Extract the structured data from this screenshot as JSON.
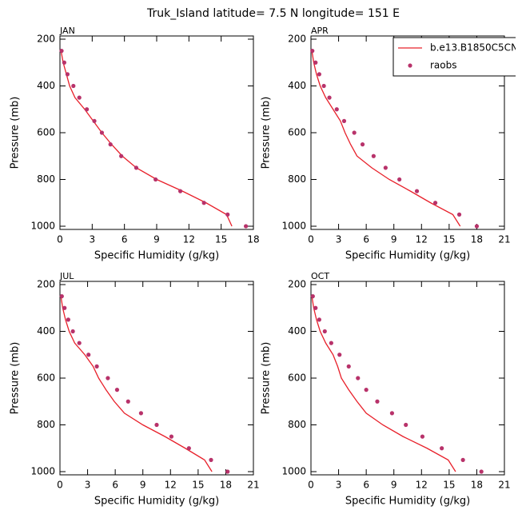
{
  "title": "Truk_Island  latitude= 7.5 N longitude= 151 E",
  "chart_data": [
    {
      "type": "line",
      "label": "JAN",
      "xlabel": "Specific Humidity (g/kg)",
      "ylabel": "Pressure (mb)",
      "xlim": [
        0,
        18
      ],
      "xticks": [
        0,
        3,
        6,
        9,
        12,
        15,
        18
      ],
      "ylim": [
        200,
        1000
      ],
      "yticks": [
        200,
        400,
        600,
        800,
        1000
      ],
      "y_inverted": true,
      "series": [
        {
          "type": "line",
          "color": "#e8202a",
          "pressure": [
            250,
            300,
            350,
            400,
            450,
            500,
            550,
            600,
            650,
            700,
            750,
            800,
            850,
            900,
            950,
            1000
          ],
          "values": [
            0.1,
            0.3,
            0.6,
            0.9,
            1.4,
            2.3,
            3.1,
            3.9,
            4.8,
            5.8,
            7.1,
            9.0,
            11.4,
            13.6,
            15.5,
            16.0
          ]
        },
        {
          "type": "scatter",
          "color": "#b8326a",
          "pressure": [
            250,
            300,
            350,
            400,
            450,
            500,
            550,
            600,
            650,
            700,
            750,
            800,
            850,
            900,
            950,
            1000
          ],
          "values": [
            0.15,
            0.4,
            0.7,
            1.25,
            1.8,
            2.5,
            3.2,
            3.9,
            4.7,
            5.7,
            7.1,
            8.9,
            11.2,
            13.4,
            15.6,
            17.3
          ]
        }
      ]
    },
    {
      "type": "line",
      "label": "APR",
      "xlabel": "Specific Humidity (g/kg)",
      "ylabel": "Pressure (mb)",
      "xlim": [
        0,
        21
      ],
      "xticks": [
        0,
        3,
        6,
        9,
        12,
        15,
        18,
        21
      ],
      "ylim": [
        200,
        1000
      ],
      "yticks": [
        200,
        400,
        600,
        800,
        1000
      ],
      "y_inverted": true,
      "legend": "upper right",
      "series": [
        {
          "type": "line",
          "name": "b.e13.B1850C5CN",
          "color": "#e8202a",
          "pressure": [
            250,
            300,
            350,
            400,
            450,
            500,
            550,
            600,
            650,
            700,
            750,
            800,
            850,
            900,
            950,
            1000
          ],
          "values": [
            0.1,
            0.3,
            0.6,
            1.0,
            1.6,
            2.4,
            3.2,
            3.7,
            4.3,
            5.0,
            6.6,
            8.5,
            10.8,
            13.0,
            15.4,
            16.2
          ]
        },
        {
          "type": "scatter",
          "name": "raobs",
          "color": "#b8326a",
          "pressure": [
            250,
            300,
            350,
            400,
            450,
            500,
            550,
            600,
            650,
            700,
            750,
            800,
            850,
            900,
            950,
            1000
          ],
          "values": [
            0.15,
            0.5,
            0.9,
            1.4,
            2.0,
            2.8,
            3.6,
            4.7,
            5.6,
            6.8,
            8.1,
            9.6,
            11.5,
            13.5,
            16.1,
            18.0
          ]
        }
      ]
    },
    {
      "type": "line",
      "label": "JUL",
      "xlabel": "Specific Humidity (g/kg)",
      "ylabel": "Pressure (mb)",
      "xlim": [
        0,
        21
      ],
      "xticks": [
        0,
        3,
        6,
        9,
        12,
        15,
        18,
        21
      ],
      "ylim": [
        200,
        1000
      ],
      "yticks": [
        200,
        400,
        600,
        800,
        1000
      ],
      "y_inverted": true,
      "series": [
        {
          "type": "line",
          "color": "#e8202a",
          "pressure": [
            250,
            300,
            350,
            400,
            450,
            500,
            550,
            600,
            650,
            700,
            750,
            800,
            850,
            900,
            950,
            1000
          ],
          "values": [
            0.1,
            0.3,
            0.6,
            1.0,
            1.6,
            2.7,
            3.6,
            4.2,
            5.0,
            5.9,
            7.0,
            9.0,
            11.4,
            13.6,
            15.7,
            16.5
          ]
        },
        {
          "type": "scatter",
          "color": "#b8326a",
          "pressure": [
            250,
            300,
            350,
            400,
            450,
            500,
            550,
            600,
            650,
            700,
            750,
            800,
            850,
            900,
            950,
            1000
          ],
          "values": [
            0.2,
            0.5,
            0.9,
            1.4,
            2.1,
            3.1,
            4.0,
            5.2,
            6.2,
            7.4,
            8.8,
            10.5,
            12.1,
            14.0,
            16.4,
            18.2
          ]
        }
      ]
    },
    {
      "type": "line",
      "label": "OCT",
      "xlabel": "Specific Humidity (g/kg)",
      "ylabel": "Pressure (mb)",
      "xlim": [
        0,
        21
      ],
      "xticks": [
        0,
        3,
        6,
        9,
        12,
        15,
        18,
        21
      ],
      "ylim": [
        200,
        1000
      ],
      "yticks": [
        200,
        400,
        600,
        800,
        1000
      ],
      "y_inverted": true,
      "series": [
        {
          "type": "line",
          "color": "#e8202a",
          "pressure": [
            250,
            300,
            350,
            400,
            450,
            500,
            550,
            600,
            650,
            700,
            750,
            800,
            850,
            900,
            950,
            1000
          ],
          "values": [
            0.1,
            0.3,
            0.6,
            1.0,
            1.6,
            2.4,
            2.9,
            3.3,
            4.1,
            5.0,
            6.0,
            7.8,
            10.0,
            12.6,
            14.9,
            15.7
          ]
        },
        {
          "type": "scatter",
          "color": "#b8326a",
          "pressure": [
            250,
            300,
            350,
            400,
            450,
            500,
            550,
            600,
            650,
            700,
            750,
            800,
            850,
            900,
            950,
            1000
          ],
          "values": [
            0.2,
            0.5,
            0.9,
            1.5,
            2.2,
            3.1,
            4.1,
            5.1,
            6.0,
            7.2,
            8.8,
            10.3,
            12.1,
            14.2,
            16.5,
            18.5
          ]
        }
      ]
    }
  ]
}
